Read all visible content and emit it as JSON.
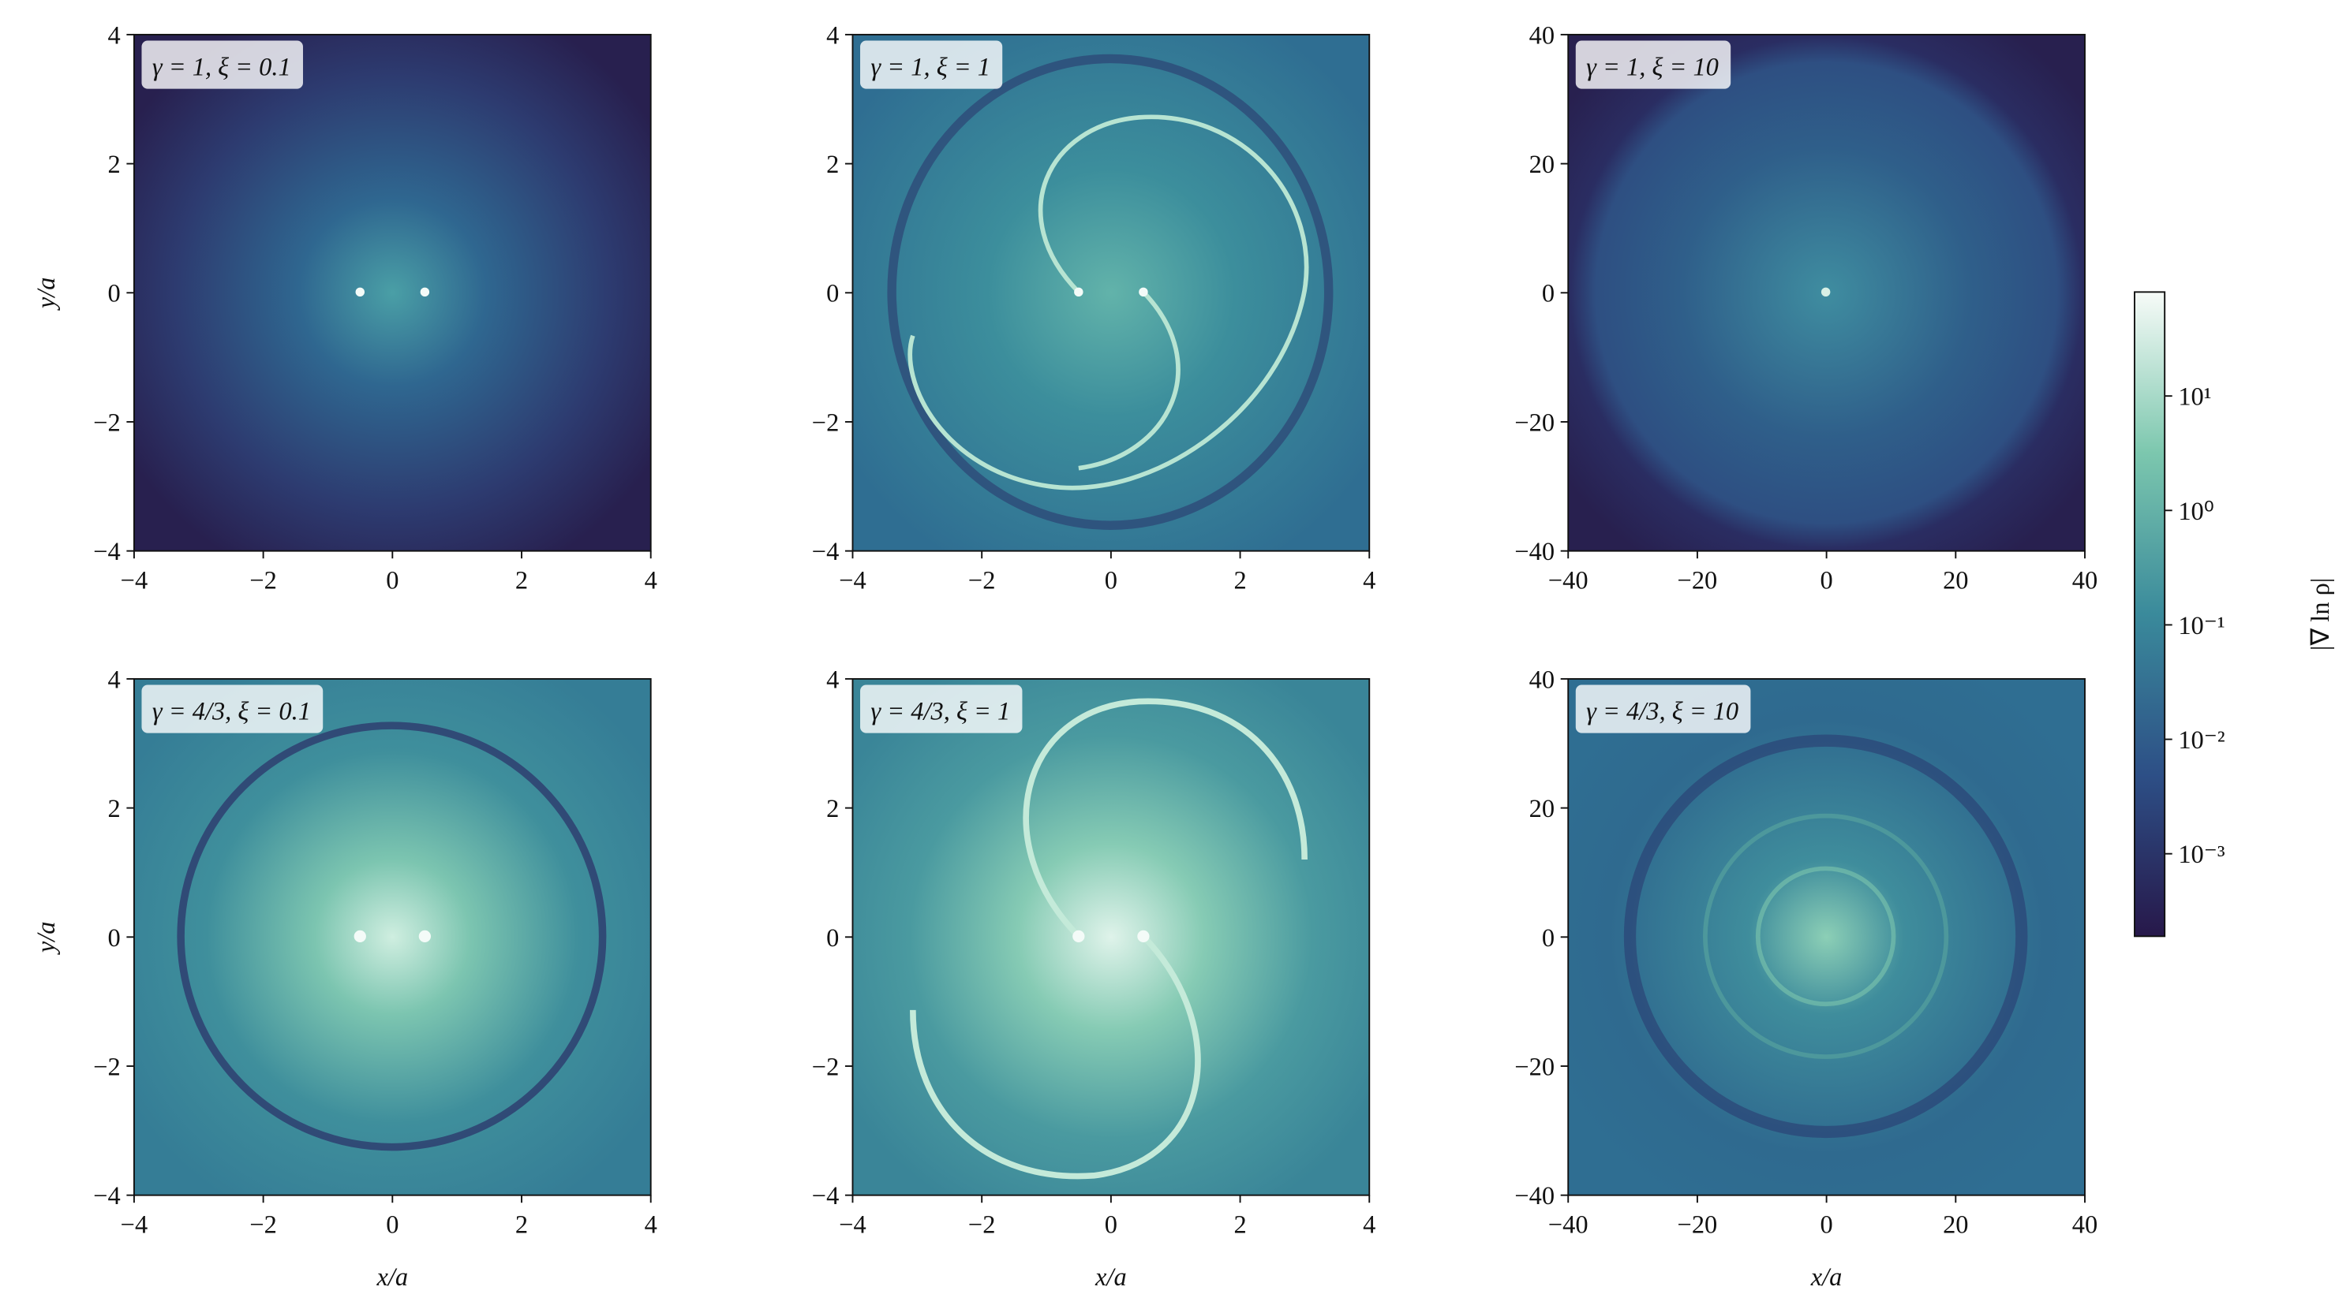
{
  "chart_data": [
    {
      "type": "heatmap",
      "title": "γ = 1, ξ = 0.1",
      "ylabel": "y/a",
      "xlim": [
        -4,
        4
      ],
      "ylim": [
        -4,
        4
      ],
      "xticks": [
        {
          "value": -4,
          "label": "−4"
        },
        {
          "value": -2,
          "label": "−2"
        },
        0,
        2,
        4
      ],
      "yticks": [
        {
          "value": -4,
          "label": "−4"
        },
        {
          "value": -2,
          "label": "−2"
        },
        0,
        2,
        4
      ]
    },
    {
      "type": "heatmap",
      "title": "γ = 1, ξ = 1",
      "xlim": [
        -4,
        4
      ],
      "ylim": [
        -4,
        4
      ],
      "xticks": [
        {
          "value": -4,
          "label": "−4"
        },
        {
          "value": -2,
          "label": "−2"
        },
        0,
        2,
        4
      ],
      "yticks": [
        {
          "value": -4,
          "label": "−4"
        },
        {
          "value": -2,
          "label": "−2"
        },
        0,
        2,
        4
      ]
    },
    {
      "type": "heatmap",
      "title": "γ = 1, ξ = 10",
      "xlim": [
        -40,
        40
      ],
      "ylim": [
        -40,
        40
      ],
      "xticks": [
        {
          "value": -40,
          "label": "−40"
        },
        {
          "value": -20,
          "label": "−20"
        },
        0,
        20,
        40
      ],
      "yticks": [
        {
          "value": -40,
          "label": "−40"
        },
        {
          "value": -20,
          "label": "−20"
        },
        0,
        20,
        40
      ]
    },
    {
      "type": "heatmap",
      "title": "γ = 4/3, ξ = 0.1",
      "xlabel": "x/a",
      "ylabel": "y/a",
      "xlim": [
        -4,
        4
      ],
      "ylim": [
        -4,
        4
      ],
      "xticks": [
        {
          "value": -4,
          "label": "−4"
        },
        {
          "value": -2,
          "label": "−2"
        },
        0,
        2,
        4
      ],
      "yticks": [
        {
          "value": -4,
          "label": "−4"
        },
        {
          "value": -2,
          "label": "−2"
        },
        0,
        2,
        4
      ]
    },
    {
      "type": "heatmap",
      "title": "γ = 4/3, ξ = 1",
      "xlabel": "x/a",
      "xlim": [
        -4,
        4
      ],
      "ylim": [
        -4,
        4
      ],
      "xticks": [
        {
          "value": -4,
          "label": "−4"
        },
        {
          "value": -2,
          "label": "−2"
        },
        0,
        2,
        4
      ],
      "yticks": [
        {
          "value": -4,
          "label": "−4"
        },
        {
          "value": -2,
          "label": "−2"
        },
        0,
        2,
        4
      ]
    },
    {
      "type": "heatmap",
      "title": "γ = 4/3, ξ = 10",
      "xlabel": "x/a",
      "xlim": [
        -40,
        40
      ],
      "ylim": [
        -40,
        40
      ],
      "xticks": [
        {
          "value": -40,
          "label": "−40"
        },
        {
          "value": -20,
          "label": "−20"
        },
        0,
        20,
        40
      ],
      "yticks": [
        {
          "value": -40,
          "label": "−40"
        },
        {
          "value": -20,
          "label": "−20"
        },
        0,
        20,
        40
      ]
    },
    {
      "type": "colorbar",
      "label": "|∇ ln ρ|",
      "log": true,
      "ylim": [
        0.00019,
        81
      ],
      "yticks": [
        {
          "value": 0.001,
          "label": "10⁻³"
        },
        {
          "value": 0.01,
          "label": "10⁻²"
        },
        {
          "value": 0.1,
          "label": "10⁻¹"
        },
        {
          "value": 1,
          "label": "10⁰"
        },
        {
          "value": 10,
          "label": "10¹"
        }
      ]
    }
  ]
}
